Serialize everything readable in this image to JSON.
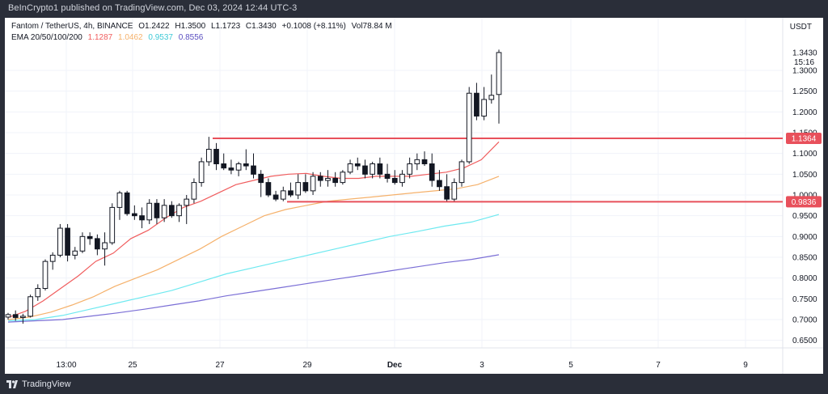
{
  "header": {
    "publisher_line": "BeInCrypto1 published on TradingView.com, Dec 03, 2024 12:44 UTC-3"
  },
  "legend": {
    "symbol": "Fantom / TetherUS, 4h, BINANCE",
    "open_label": "O",
    "open": "1.2422",
    "high_label": "H",
    "high": "1.3500",
    "low_label": "L",
    "low": "1.1723",
    "close_label": "C",
    "close": "1.3430",
    "change": "+0.1008 (+8.11%)",
    "vol_label": "Vol",
    "volume": "78.84 M",
    "ema_label": "EMA 20/50/100/200",
    "ema20": "1.1287",
    "ema50": "1.0462",
    "ema100": "0.9537",
    "ema200": "0.8556"
  },
  "currency": "USDT",
  "footer": {
    "brand": "TradingView"
  },
  "colors": {
    "ema20": "#f05d5e",
    "ema50": "#f5b16b",
    "ema100": "#6ee9f0",
    "ema200": "#7b6fd6",
    "level": "#e8505b",
    "bull_body": "#ffffff",
    "bear_body": "#131722"
  },
  "chart_data": {
    "type": "candlestick",
    "y_ticks": [
      "0.6500",
      "0.7000",
      "0.7500",
      "0.8000",
      "0.8500",
      "0.9000",
      "0.9500",
      "1.0000",
      "1.0500",
      "1.1000",
      "1.1500",
      "1.2000",
      "1.2500",
      "1.3000"
    ],
    "x_ticks": [
      "13:00",
      "25",
      "27",
      "29",
      "Dec",
      "3",
      "5",
      "7",
      "9"
    ],
    "ylim": [
      0.62,
      1.4
    ],
    "price_label": {
      "value": "1.3430",
      "countdown": "15:16"
    },
    "levels": [
      {
        "value": 1.1364,
        "label": "1.1364"
      },
      {
        "value": 0.9836,
        "label": "0.9836"
      }
    ],
    "candles": [
      [
        0.706,
        0.716,
        0.7,
        0.712
      ],
      [
        0.712,
        0.722,
        0.697,
        0.705
      ],
      [
        0.705,
        0.714,
        0.69,
        0.708
      ],
      [
        0.708,
        0.76,
        0.705,
        0.755
      ],
      [
        0.755,
        0.785,
        0.745,
        0.775
      ],
      [
        0.775,
        0.845,
        0.77,
        0.84
      ],
      [
        0.84,
        0.862,
        0.82,
        0.855
      ],
      [
        0.855,
        0.93,
        0.85,
        0.92
      ],
      [
        0.92,
        0.93,
        0.84,
        0.855
      ],
      [
        0.855,
        0.875,
        0.845,
        0.865
      ],
      [
        0.865,
        0.91,
        0.86,
        0.9
      ],
      [
        0.9,
        0.91,
        0.88,
        0.895
      ],
      [
        0.895,
        0.905,
        0.855,
        0.87
      ],
      [
        0.87,
        0.91,
        0.83,
        0.885
      ],
      [
        0.885,
        0.98,
        0.88,
        0.97
      ],
      [
        0.97,
        1.01,
        0.94,
        1.005
      ],
      [
        1.005,
        1.01,
        0.95,
        0.955
      ],
      [
        0.955,
        0.975,
        0.94,
        0.95
      ],
      [
        0.95,
        0.97,
        0.92,
        0.94
      ],
      [
        0.94,
        0.99,
        0.93,
        0.98
      ],
      [
        0.98,
        0.99,
        0.93,
        0.945
      ],
      [
        0.945,
        0.99,
        0.935,
        0.975
      ],
      [
        0.975,
        0.985,
        0.945,
        0.95
      ],
      [
        0.95,
        0.98,
        0.935,
        0.975
      ],
      [
        0.975,
        1.0,
        0.93,
        0.99
      ],
      [
        0.99,
        1.04,
        0.98,
        1.03
      ],
      [
        1.03,
        1.09,
        1.02,
        1.08
      ],
      [
        1.08,
        1.14,
        1.07,
        1.11
      ],
      [
        1.11,
        1.125,
        1.06,
        1.075
      ],
      [
        1.075,
        1.1,
        1.06,
        1.065
      ],
      [
        1.065,
        1.085,
        1.05,
        1.06
      ],
      [
        1.06,
        1.08,
        1.045,
        1.075
      ],
      [
        1.075,
        1.11,
        1.06,
        1.07
      ],
      [
        1.07,
        1.1,
        1.04,
        1.05
      ],
      [
        1.05,
        1.06,
        0.995,
        1.03
      ],
      [
        1.03,
        1.04,
        0.995,
        1.0
      ],
      [
        1.0,
        1.01,
        0.985,
        0.99
      ],
      [
        0.99,
        1.02,
        0.985,
        1.01
      ],
      [
        1.01,
        1.03,
        0.995,
        1.0
      ],
      [
        1.0,
        1.05,
        0.99,
        1.03
      ],
      [
        1.03,
        1.05,
        1.005,
        1.01
      ],
      [
        1.01,
        1.055,
        1.0,
        1.045
      ],
      [
        1.045,
        1.055,
        1.02,
        1.035
      ],
      [
        1.035,
        1.06,
        1.02,
        1.04
      ],
      [
        1.04,
        1.055,
        1.02,
        1.03
      ],
      [
        1.03,
        1.06,
        1.025,
        1.055
      ],
      [
        1.055,
        1.085,
        1.05,
        1.075
      ],
      [
        1.075,
        1.09,
        1.06,
        1.07
      ],
      [
        1.07,
        1.085,
        1.04,
        1.05
      ],
      [
        1.05,
        1.08,
        1.04,
        1.075
      ],
      [
        1.075,
        1.09,
        1.04,
        1.05
      ],
      [
        1.05,
        1.075,
        1.03,
        1.04
      ],
      [
        1.04,
        1.06,
        1.025,
        1.03
      ],
      [
        1.03,
        1.06,
        1.02,
        1.05
      ],
      [
        1.05,
        1.09,
        1.04,
        1.075
      ],
      [
        1.075,
        1.1,
        1.06,
        1.085
      ],
      [
        1.085,
        1.105,
        1.07,
        1.075
      ],
      [
        1.075,
        1.1,
        1.02,
        1.035
      ],
      [
        1.035,
        1.06,
        1.01,
        1.02
      ],
      [
        1.02,
        1.05,
        0.985,
        0.99
      ],
      [
        0.99,
        1.04,
        0.985,
        1.03
      ],
      [
        1.03,
        1.085,
        1.02,
        1.08
      ],
      [
        1.08,
        1.26,
        1.075,
        1.245
      ],
      [
        1.245,
        1.27,
        1.18,
        1.19
      ],
      [
        1.19,
        1.26,
        1.18,
        1.23
      ],
      [
        1.23,
        1.29,
        1.22,
        1.24
      ],
      [
        1.242,
        1.35,
        1.172,
        1.343
      ]
    ],
    "ema20": [
      0.705,
      0.72,
      0.745,
      0.775,
      0.805,
      0.84,
      0.86,
      0.895,
      0.915,
      0.945,
      0.97,
      0.985,
      1.005,
      1.025,
      1.035,
      1.045,
      1.05,
      1.052,
      1.045,
      1.04,
      1.04,
      1.045,
      1.045,
      1.045,
      1.05,
      1.055,
      1.065,
      1.085,
      1.128
    ],
    "ema50": [
      0.7,
      0.706,
      0.718,
      0.735,
      0.755,
      0.78,
      0.8,
      0.82,
      0.845,
      0.87,
      0.9,
      0.925,
      0.95,
      0.965,
      0.975,
      0.985,
      0.99,
      0.995,
      1.0,
      1.005,
      1.01,
      1.015,
      1.025,
      1.045
    ],
    "ema100": [
      0.697,
      0.7,
      0.71,
      0.725,
      0.74,
      0.755,
      0.77,
      0.79,
      0.81,
      0.825,
      0.84,
      0.855,
      0.87,
      0.885,
      0.9,
      0.912,
      0.925,
      0.935,
      0.953
    ],
    "ema200": [
      0.694,
      0.697,
      0.7,
      0.708,
      0.716,
      0.725,
      0.735,
      0.745,
      0.757,
      0.767,
      0.777,
      0.787,
      0.797,
      0.807,
      0.817,
      0.827,
      0.837,
      0.845,
      0.856
    ]
  }
}
